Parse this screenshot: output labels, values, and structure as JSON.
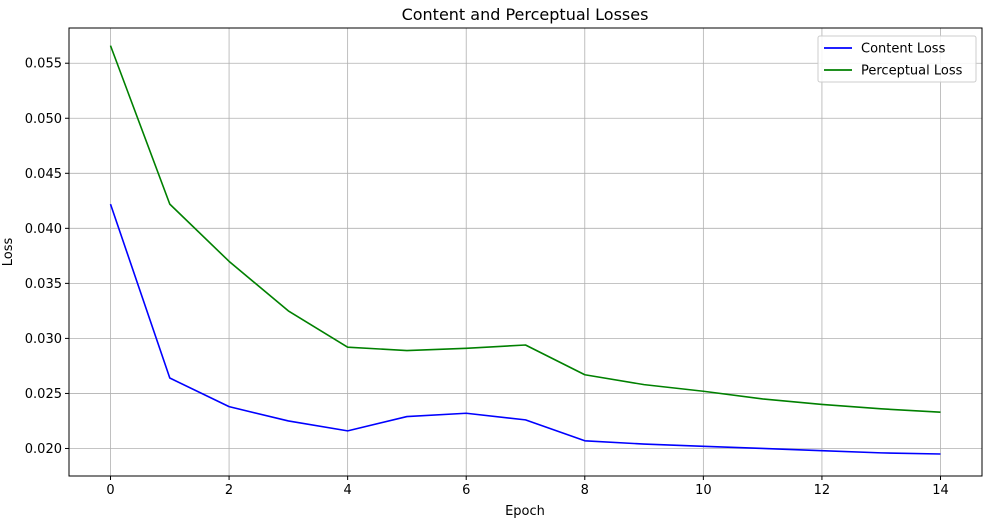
{
  "chart_data": {
    "type": "line",
    "title": "Content and Perceptual Losses",
    "xlabel": "Epoch",
    "ylabel": "Loss",
    "x": [
      0,
      1,
      2,
      3,
      4,
      5,
      6,
      7,
      8,
      9,
      10,
      11,
      12,
      13,
      14
    ],
    "xlim": [
      -0.7,
      14.7
    ],
    "ylim": [
      0.0175,
      0.0582
    ],
    "xticks": [
      0,
      2,
      4,
      6,
      8,
      10,
      12,
      14
    ],
    "yticks": [
      0.02,
      0.025,
      0.03,
      0.035,
      0.04,
      0.045,
      0.05,
      0.055
    ],
    "xtick_labels": [
      "0",
      "2",
      "4",
      "6",
      "8",
      "10",
      "12",
      "14"
    ],
    "ytick_labels": [
      "0.020",
      "0.025",
      "0.030",
      "0.035",
      "0.040",
      "0.045",
      "0.050",
      "0.055"
    ],
    "grid": true,
    "legend_position": "top-right",
    "series": [
      {
        "name": "Content Loss",
        "color": "#0000ff",
        "values": [
          0.0422,
          0.0264,
          0.0238,
          0.0225,
          0.0216,
          0.0229,
          0.0232,
          0.0226,
          0.0207,
          0.0204,
          0.0202,
          0.02,
          0.0198,
          0.0196,
          0.0195
        ]
      },
      {
        "name": "Perceptual Loss",
        "color": "#008000",
        "values": [
          0.0566,
          0.0422,
          0.037,
          0.0325,
          0.0292,
          0.0289,
          0.0291,
          0.0294,
          0.0267,
          0.0258,
          0.0252,
          0.0245,
          0.024,
          0.0236,
          0.0233
        ]
      }
    ]
  }
}
